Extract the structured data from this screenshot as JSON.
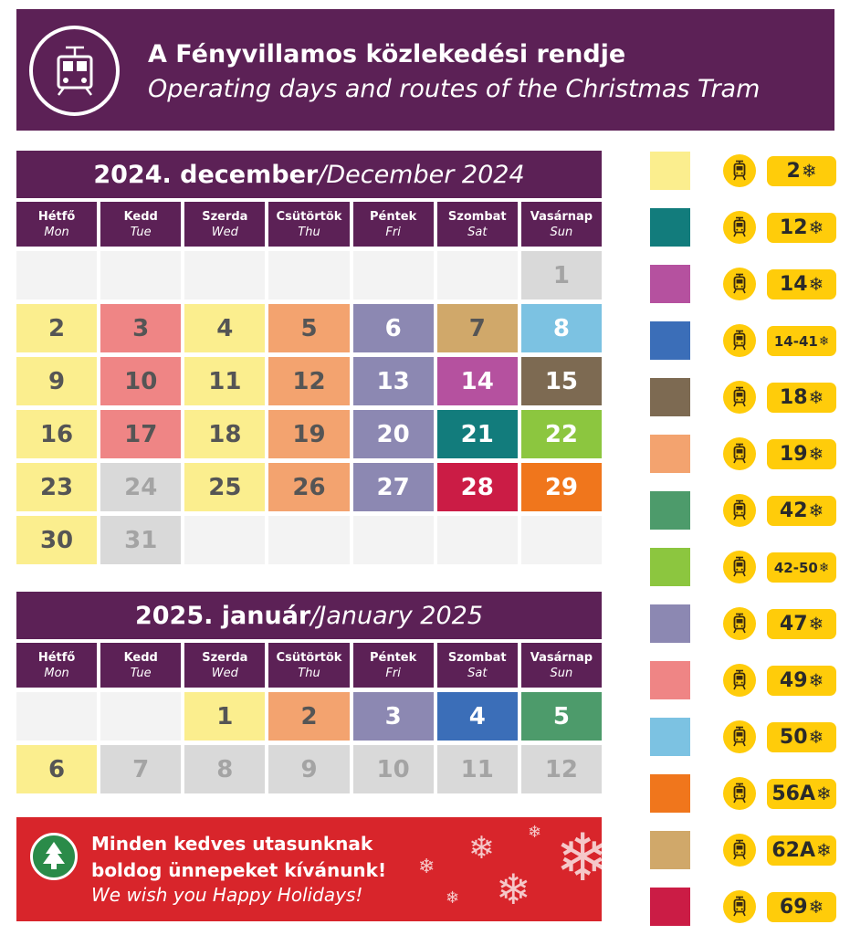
{
  "header": {
    "title_hu": "A Fényvillamos közlekedési rendje",
    "title_en": "Operating days and routes of the Christmas Tram"
  },
  "december": {
    "title_hu": "2024. december",
    "separator": " / ",
    "title_en": "December 2024"
  },
  "january": {
    "title_hu": "2025. január",
    "separator": " / ",
    "title_en": "January 2025"
  },
  "weekdays": [
    {
      "hu": "Hétfő",
      "en": "Mon"
    },
    {
      "hu": "Kedd",
      "en": "Tue"
    },
    {
      "hu": "Szerda",
      "en": "Wed"
    },
    {
      "hu": "Csütörtök",
      "en": "Thu"
    },
    {
      "hu": "Péntek",
      "en": "Fri"
    },
    {
      "hu": "Szombat",
      "en": "Sat"
    },
    {
      "hu": "Vasárnap",
      "en": "Sun"
    }
  ],
  "colors": {
    "purple": "#5c2156",
    "route_2": "#fbee8e",
    "route_12": "#127c7c",
    "route_14": "#b5519f",
    "route_14_41": "#3b6eb8",
    "route_18": "#7d6a52",
    "route_19": "#f3a36f",
    "route_42": "#4d9b6b",
    "route_42_50": "#8cc63f",
    "route_47": "#8c88b2",
    "route_49": "#ef8585",
    "route_50": "#7cc2e2",
    "route_56A": "#f0761c",
    "route_62A": "#d0a86a",
    "route_69": "#cb1c45",
    "no_service": "#d9d9d9",
    "empty": "#f3f3f3",
    "tram_yellow": "#ffcc0a",
    "banner_red": "#d8252b"
  },
  "december_days": [
    {
      "day": "",
      "route": "empty"
    },
    {
      "day": "",
      "route": "empty"
    },
    {
      "day": "",
      "route": "empty"
    },
    {
      "day": "",
      "route": "empty"
    },
    {
      "day": "",
      "route": "empty"
    },
    {
      "day": "",
      "route": "empty"
    },
    {
      "day": "1",
      "route": "no_service"
    },
    {
      "day": "2",
      "route": "route_2"
    },
    {
      "day": "3",
      "route": "route_49"
    },
    {
      "day": "4",
      "route": "route_2"
    },
    {
      "day": "5",
      "route": "route_19"
    },
    {
      "day": "6",
      "route": "route_47"
    },
    {
      "day": "7",
      "route": "route_62A"
    },
    {
      "day": "8",
      "route": "route_50"
    },
    {
      "day": "9",
      "route": "route_2"
    },
    {
      "day": "10",
      "route": "route_49"
    },
    {
      "day": "11",
      "route": "route_2"
    },
    {
      "day": "12",
      "route": "route_19"
    },
    {
      "day": "13",
      "route": "route_47"
    },
    {
      "day": "14",
      "route": "route_14"
    },
    {
      "day": "15",
      "route": "route_18"
    },
    {
      "day": "16",
      "route": "route_2"
    },
    {
      "day": "17",
      "route": "route_49"
    },
    {
      "day": "18",
      "route": "route_2"
    },
    {
      "day": "19",
      "route": "route_19"
    },
    {
      "day": "20",
      "route": "route_47"
    },
    {
      "day": "21",
      "route": "route_12"
    },
    {
      "day": "22",
      "route": "route_42_50"
    },
    {
      "day": "23",
      "route": "route_2"
    },
    {
      "day": "24",
      "route": "no_service"
    },
    {
      "day": "25",
      "route": "route_2"
    },
    {
      "day": "26",
      "route": "route_19"
    },
    {
      "day": "27",
      "route": "route_47"
    },
    {
      "day": "28",
      "route": "route_69"
    },
    {
      "day": "29",
      "route": "route_56A"
    },
    {
      "day": "30",
      "route": "route_2"
    },
    {
      "day": "31",
      "route": "no_service"
    },
    {
      "day": "",
      "route": "empty"
    },
    {
      "day": "",
      "route": "empty"
    },
    {
      "day": "",
      "route": "empty"
    },
    {
      "day": "",
      "route": "empty"
    },
    {
      "day": "",
      "route": "empty"
    }
  ],
  "january_days": [
    {
      "day": "",
      "route": "empty"
    },
    {
      "day": "",
      "route": "empty"
    },
    {
      "day": "1",
      "route": "route_2"
    },
    {
      "day": "2",
      "route": "route_19"
    },
    {
      "day": "3",
      "route": "route_47"
    },
    {
      "day": "4",
      "route": "route_14_41"
    },
    {
      "day": "5",
      "route": "route_42"
    },
    {
      "day": "6",
      "route": "route_2"
    },
    {
      "day": "7",
      "route": "no_service"
    },
    {
      "day": "8",
      "route": "no_service"
    },
    {
      "day": "9",
      "route": "no_service"
    },
    {
      "day": "10",
      "route": "no_service"
    },
    {
      "day": "11",
      "route": "no_service"
    },
    {
      "day": "12",
      "route": "no_service"
    }
  ],
  "legend": [
    {
      "route": "2",
      "color_key": "route_2",
      "icon": "tram-icon"
    },
    {
      "route": "12",
      "color_key": "route_12",
      "icon": "tram-icon"
    },
    {
      "route": "14",
      "color_key": "route_14",
      "icon": "tram-icon"
    },
    {
      "route": "14-41",
      "color_key": "route_14_41",
      "icon": "tram-icon"
    },
    {
      "route": "18",
      "color_key": "route_18",
      "icon": "tram-icon"
    },
    {
      "route": "19",
      "color_key": "route_19",
      "icon": "tram-icon"
    },
    {
      "route": "42",
      "color_key": "route_42",
      "icon": "tram-icon"
    },
    {
      "route": "42-50",
      "color_key": "route_42_50",
      "icon": "tram-icon"
    },
    {
      "route": "47",
      "color_key": "route_47",
      "icon": "tram-icon"
    },
    {
      "route": "49",
      "color_key": "route_49",
      "icon": "tram-icon"
    },
    {
      "route": "50",
      "color_key": "route_50",
      "icon": "tram-icon"
    },
    {
      "route": "56A",
      "color_key": "route_56A",
      "icon": "tram-icon"
    },
    {
      "route": "62A",
      "color_key": "route_62A",
      "icon": "tram-icon"
    },
    {
      "route": "69",
      "color_key": "route_69",
      "icon": "tram-icon"
    }
  ],
  "banner": {
    "line1": "Minden kedves utasunknak",
    "line2": "boldog ünnepeket kívánunk!",
    "line3": "We wish you Happy Holidays!"
  },
  "icons": {
    "snowflake": "❄",
    "logo": "christmas-tram-logo",
    "tree": "christmas-tree-icon"
  }
}
